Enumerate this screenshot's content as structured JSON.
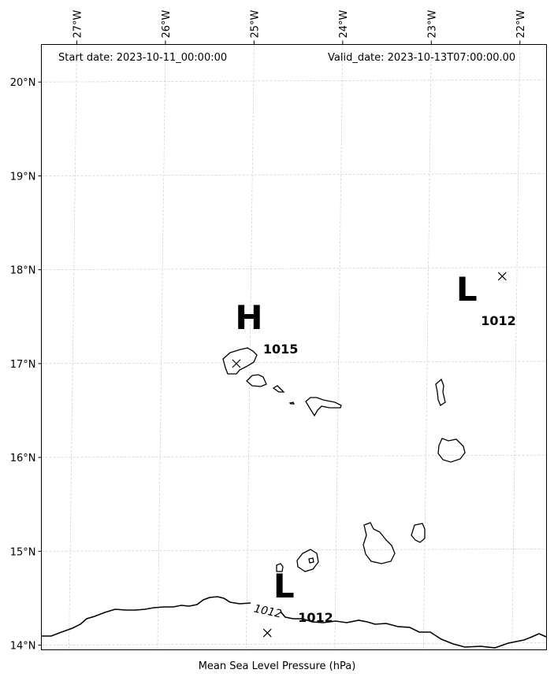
{
  "header": {
    "start_date": "Start date: 2023-10-11_00:00:00",
    "valid_date": "Valid_date: 2023-10-13T07:00:00.00"
  },
  "footer": {
    "caption": "Mean Sea Level Pressure (hPa)"
  },
  "map": {
    "lon_range": [
      -27.4,
      -21.7
    ],
    "lat_range": [
      13.95,
      20.4
    ],
    "gridlines": true,
    "lon_ticks": [
      {
        "label": "27°W",
        "value": -27
      },
      {
        "label": "26°W",
        "value": -26
      },
      {
        "label": "25°W",
        "value": -25
      },
      {
        "label": "24°W",
        "value": -24
      },
      {
        "label": "23°W",
        "value": -23
      },
      {
        "label": "22°W",
        "value": -22
      }
    ],
    "lat_ticks": [
      {
        "label": "20°N",
        "value": 20
      },
      {
        "label": "19°N",
        "value": 19
      },
      {
        "label": "18°N",
        "value": 18
      },
      {
        "label": "17°N",
        "value": 17
      },
      {
        "label": "16°N",
        "value": 16
      },
      {
        "label": "15°N",
        "value": 15
      },
      {
        "label": "14°N",
        "value": 14
      }
    ],
    "pressure_centers": [
      {
        "type": "H",
        "value": "1015",
        "lon": -25.2,
        "lat": 17.0
      },
      {
        "type": "L",
        "value": "1012",
        "lon": -22.2,
        "lat": 17.93
      },
      {
        "type": "L",
        "value": "1012",
        "lon": -24.85,
        "lat": 14.13
      }
    ],
    "isobars": [
      {
        "label": "1012",
        "level": 1012
      }
    ],
    "colors": {
      "coastline": "#000000",
      "grid": "#cccccc",
      "isobar": "#000000"
    }
  }
}
